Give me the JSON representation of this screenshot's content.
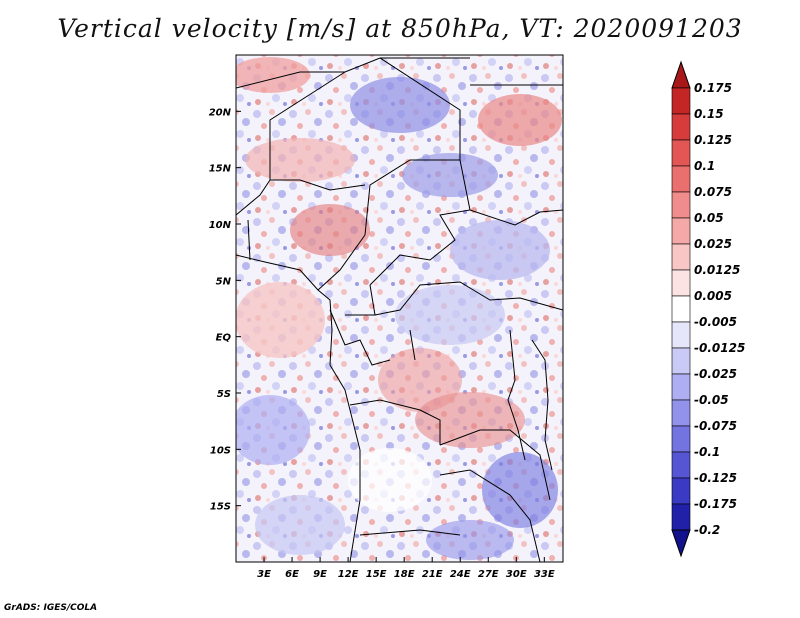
{
  "title": "Vertical velocity [m/s] at 850hPa, VT: 2020091203",
  "credit": "GrADS: IGES/COLA",
  "map": {
    "lat_labels": [
      "20N",
      "15N",
      "10N",
      "5N",
      "EQ",
      "5S",
      "10S",
      "15S"
    ],
    "lat_values": [
      20,
      15,
      10,
      5,
      0,
      -5,
      -10,
      -15
    ],
    "lon_labels": [
      "3E",
      "6E",
      "9E",
      "12E",
      "15E",
      "18E",
      "21E",
      "24E",
      "27E",
      "30E",
      "33E"
    ],
    "lon_values": [
      3,
      6,
      9,
      12,
      15,
      18,
      21,
      24,
      27,
      30,
      33
    ],
    "lat_range": [
      -20,
      25
    ],
    "lon_range": [
      0,
      35
    ]
  },
  "colorbar": {
    "labels": [
      "0.175",
      "0.15",
      "0.125",
      "0.1",
      "0.075",
      "0.05",
      "0.025",
      "0.0125",
      "0.005",
      "-0.005",
      "-0.0125",
      "-0.025",
      "-0.05",
      "-0.075",
      "-0.1",
      "-0.125",
      "-0.175",
      "-0.2"
    ],
    "colors": [
      "#a81818",
      "#c42626",
      "#d63c3c",
      "#e25656",
      "#ea7070",
      "#f08c8c",
      "#f5a8a8",
      "#f9c6c6",
      "#fce3e3",
      "#ffffff",
      "#e6e6fb",
      "#cacaf6",
      "#aeaef2",
      "#9292ea",
      "#7474e0",
      "#5656d4",
      "#3a3ac4",
      "#2020a8",
      "#12128c"
    ]
  }
}
